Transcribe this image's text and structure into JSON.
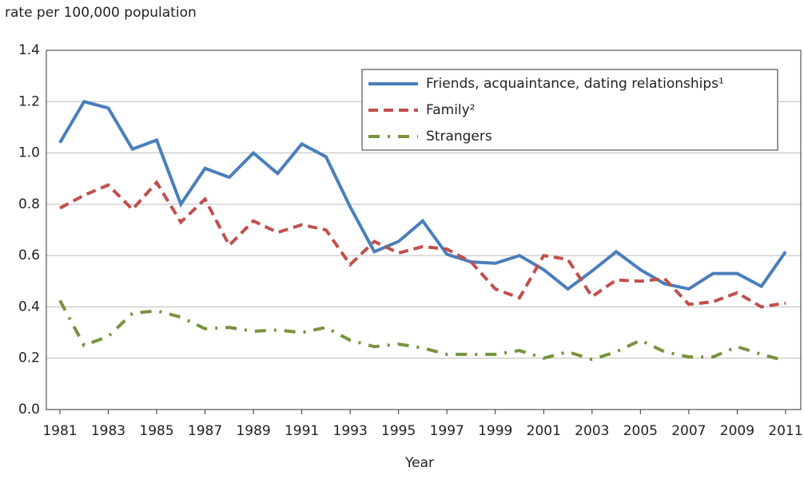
{
  "chart_data": {
    "type": "line",
    "y_axis_label": "rate per 100,000 population",
    "x_axis_label": "Year",
    "x": [
      1981,
      1982,
      1983,
      1984,
      1985,
      1986,
      1987,
      1988,
      1989,
      1990,
      1991,
      1992,
      1993,
      1994,
      1995,
      1996,
      1997,
      1998,
      1999,
      2000,
      2001,
      2002,
      2003,
      2004,
      2005,
      2006,
      2007,
      2008,
      2009,
      2010,
      2011
    ],
    "xlim": [
      1980.44,
      2011.63
    ],
    "xticks": [
      1981,
      1983,
      1985,
      1987,
      1989,
      1991,
      1993,
      1995,
      1997,
      1999,
      2001,
      2003,
      2005,
      2007,
      2009,
      2011
    ],
    "ylim": [
      0,
      1.4
    ],
    "yticks": [
      {
        "value": 0,
        "label": "0.0"
      },
      0.2,
      0.4,
      0.6,
      0.8,
      {
        "value": 1,
        "label": "1.0"
      },
      1.2,
      1.4
    ],
    "grid": true,
    "legend": "upper right",
    "series": [
      {
        "name": "Friends, acquaintance, dating relationships¹",
        "color": "#4a7ebb",
        "dash": "solid",
        "values": [
          1.04,
          1.2,
          1.175,
          1.015,
          1.05,
          0.8,
          0.94,
          0.905,
          1.0,
          0.92,
          1.035,
          0.985,
          0.79,
          0.615,
          0.655,
          0.735,
          0.605,
          0.575,
          0.57,
          0.6,
          0.545,
          0.47,
          0.54,
          0.615,
          0.545,
          0.49,
          0.47,
          0.53,
          0.53,
          0.48,
          0.615
        ]
      },
      {
        "name": "Family²",
        "color": "#c0504d",
        "dash": "dashed",
        "values": [
          0.785,
          0.835,
          0.875,
          0.78,
          0.885,
          0.73,
          0.82,
          0.64,
          0.735,
          0.69,
          0.72,
          0.7,
          0.565,
          0.655,
          0.61,
          0.635,
          0.625,
          0.575,
          0.47,
          0.435,
          0.6,
          0.585,
          0.44,
          0.505,
          0.5,
          0.51,
          0.41,
          0.42,
          0.455,
          0.4,
          0.415
        ]
      },
      {
        "name": "Strangers",
        "color": "#77933c",
        "dash": "dashdot",
        "values": [
          0.425,
          0.25,
          0.285,
          0.375,
          0.385,
          0.36,
          0.315,
          0.32,
          0.305,
          0.31,
          0.3,
          0.32,
          0.27,
          0.245,
          0.255,
          0.24,
          0.215,
          0.215,
          0.215,
          0.23,
          0.2,
          0.225,
          0.195,
          0.225,
          0.27,
          0.225,
          0.205,
          0.205,
          0.245,
          0.215,
          0.19
        ]
      }
    ]
  }
}
